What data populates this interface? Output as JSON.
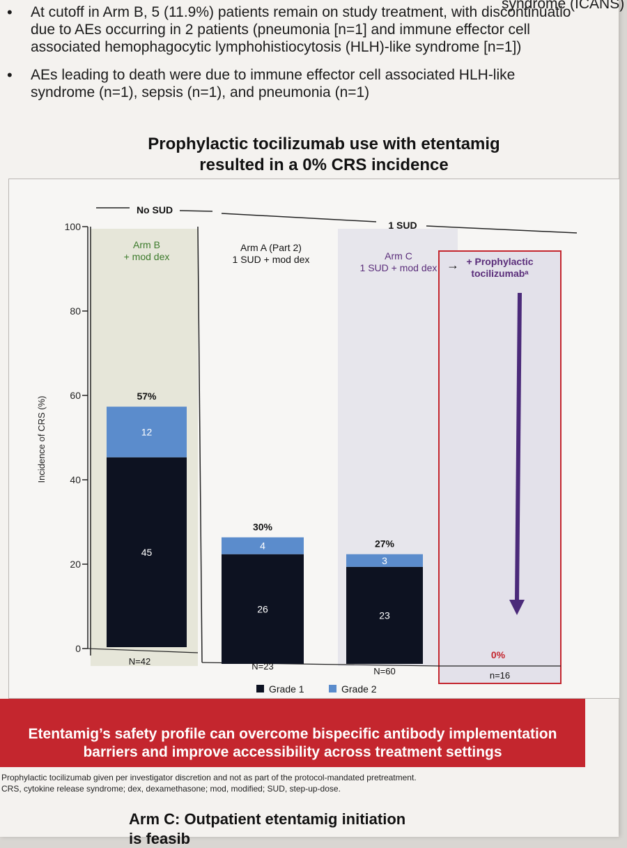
{
  "bullets": [
    {
      "lines": [
        "At cutoff in Arm B, 5 (11.9%) patients remain on study treatment, with discontinuatio",
        "due to AEs occurring in 2 patients (pneumonia [n=1] and immune effector cell",
        "associated hemophagocytic lymphohistiocytosis (HLH)-like syndrome [n=1])"
      ]
    },
    {
      "lines": [
        "AEs leading to death were due to immune effector cell associated HLH-like",
        "syndrome (n=1), sepsis (n=1), and pneumonia (n=1)"
      ]
    }
  ],
  "partial_top_text": "syndrome (ICANS)",
  "bullet_symbol": "•",
  "chart_data": {
    "type": "bar",
    "title": [
      "Prophylactic tocilizumab use with etentamig",
      "resulted in a 0% CRS incidence"
    ],
    "ylabel": "Incidence of CRS (%)",
    "ylim": [
      0,
      100
    ],
    "yticks": [
      0,
      20,
      40,
      60,
      80,
      100
    ],
    "groups": [
      {
        "label": "No SUD",
        "bars": [
          0
        ]
      },
      {
        "label": "1 SUD",
        "bars": [
          1,
          2,
          3
        ]
      }
    ],
    "categories": [
      {
        "name": [
          "Arm B",
          "+ mod dex"
        ],
        "n": "N=42",
        "total_label": "57%",
        "bg": "#e6e6d9",
        "name_color": "#3b7a2a"
      },
      {
        "name": [
          "Arm A (Part 2)",
          "1 SUD + mod dex"
        ],
        "n": "N=23",
        "total_label": "30%",
        "bg": "#f7f6f4",
        "name_color": "#111111"
      },
      {
        "name": [
          "Arm C",
          "1 SUD + mod dex"
        ],
        "n": "N=60",
        "total_label": "27%",
        "bg": "#e7e6ec",
        "name_color": "#5a2d7a"
      },
      {
        "name": [
          "+ Prophylactic",
          "tocilizumabᵃ"
        ],
        "n": "n=16",
        "total_label": "0%",
        "bg": "#e3e1ea",
        "name_color": "#5a2d7a"
      }
    ],
    "series": [
      {
        "name": "Grade 1",
        "color": "#0d1221",
        "values": [
          45,
          26,
          23,
          0
        ],
        "labels": [
          "45",
          "26",
          "23",
          ""
        ]
      },
      {
        "name": "Grade 2",
        "color": "#5b8ccc",
        "values": [
          12,
          4,
          3,
          0
        ],
        "labels": [
          "12",
          "4",
          "3",
          ""
        ]
      }
    ],
    "arrow_symbol": "→",
    "highlight_color": "#c4262e",
    "arrow_color": "#4b2a7a",
    "legend_position": "bottom-center"
  },
  "banner": {
    "lines": [
      "Etentamig’s safety profile can overcome bispecific antibody implementation",
      "barriers and improve accessibility across treatment settings"
    ],
    "color": "#c4262e"
  },
  "footnotes": [
    "Prophylactic tocilizumab given per investigator discretion and not as part of the protocol-mandated pretreatment.",
    "CRS, cytokine release syndrome; dex, dexamethasone; mod, modified; SUD, step-up-dose."
  ],
  "next_heading": "Arm C: Outpatient etentamig initiation",
  "next_heading_partial": "is feasib"
}
